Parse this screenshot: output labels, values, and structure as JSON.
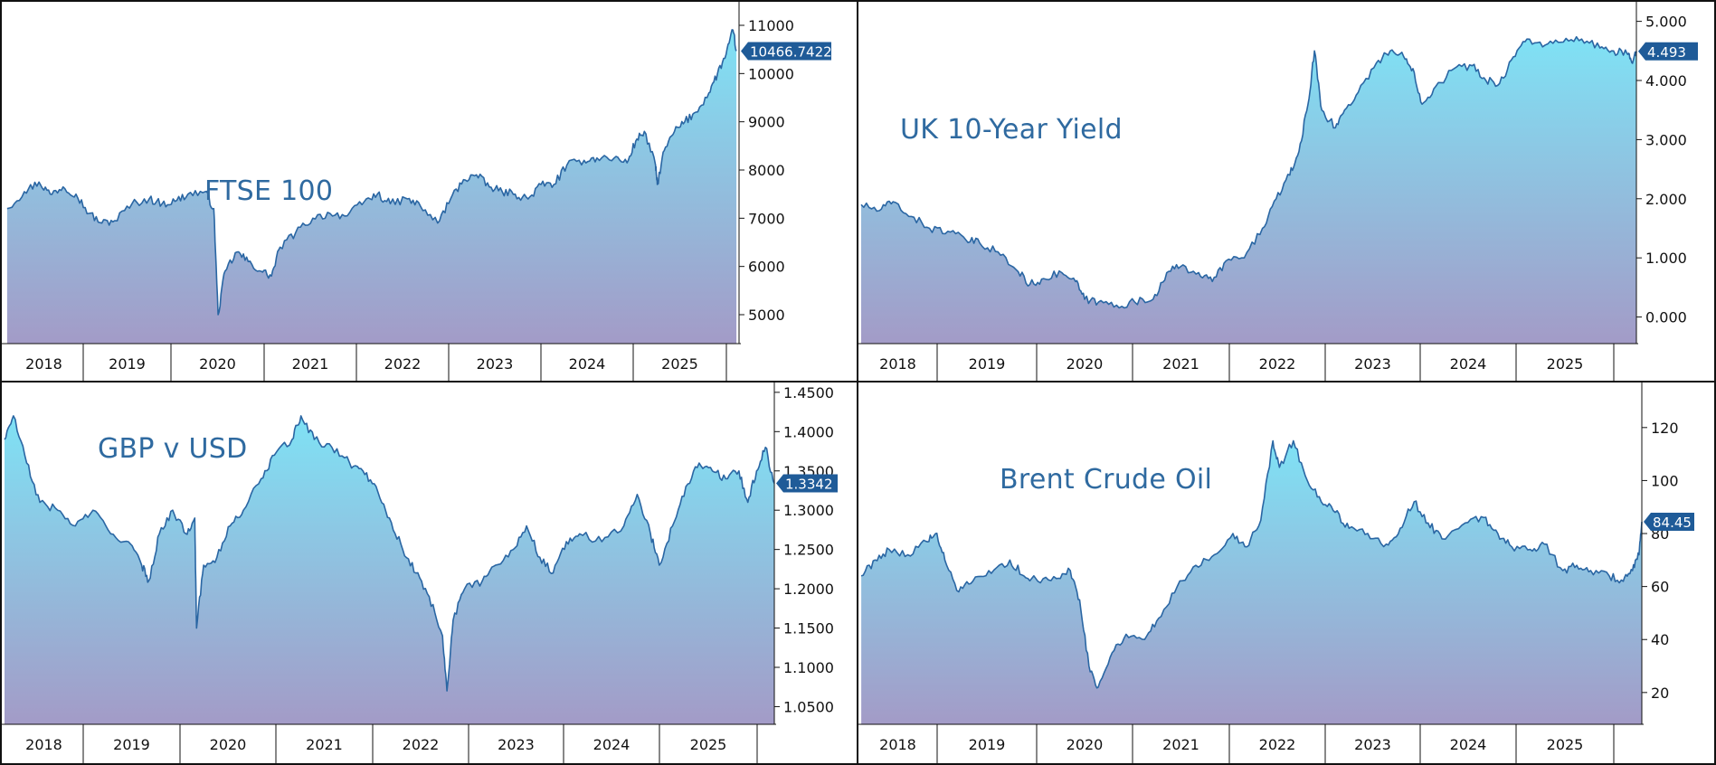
{
  "colors": {
    "line": "#2a66a3",
    "fill_top": "#7fe2f5",
    "fill_bottom": "#a39bc7",
    "badge": "#1f5b98",
    "badge_text": "#ffffff",
    "frame": "#111111"
  },
  "chart_data": [
    {
      "type": "area",
      "title": "FTSE 100",
      "x_labels": [
        "2018",
        "2019",
        "2020",
        "2021",
        "2022",
        "2023",
        "2024",
        "2025"
      ],
      "y_ticks": [
        "11000",
        "10000",
        "9000",
        "8000",
        "7000",
        "6000",
        "5000"
      ],
      "y_tick_values": [
        11000,
        10000,
        9000,
        8000,
        7000,
        6000,
        5000
      ],
      "ylim": [
        4400,
        11450
      ],
      "last_value_label": "10466.7422",
      "last_value": 10466.7422,
      "series_anchors": [
        [
          2017.75,
          7200
        ],
        [
          2017.95,
          7550
        ],
        [
          2018.12,
          7750
        ],
        [
          2018.25,
          7500
        ],
        [
          2018.4,
          7650
        ],
        [
          2018.55,
          7500
        ],
        [
          2018.7,
          7100
        ],
        [
          2018.85,
          6900
        ],
        [
          2019.0,
          6950
        ],
        [
          2019.2,
          7300
        ],
        [
          2019.4,
          7400
        ],
        [
          2019.55,
          7300
        ],
        [
          2019.7,
          7350
        ],
        [
          2019.85,
          7500
        ],
        [
          2020.05,
          7550
        ],
        [
          2020.15,
          7200
        ],
        [
          2020.2,
          5000
        ],
        [
          2020.28,
          5900
        ],
        [
          2020.42,
          6300
        ],
        [
          2020.55,
          6100
        ],
        [
          2020.7,
          5900
        ],
        [
          2020.82,
          5800
        ],
        [
          2020.92,
          6400
        ],
        [
          2021.1,
          6700
        ],
        [
          2021.3,
          7000
        ],
        [
          2021.5,
          7100
        ],
        [
          2021.7,
          7050
        ],
        [
          2021.9,
          7350
        ],
        [
          2022.05,
          7500
        ],
        [
          2022.2,
          7300
        ],
        [
          2022.4,
          7400
        ],
        [
          2022.55,
          7250
        ],
        [
          2022.75,
          6900
        ],
        [
          2022.9,
          7400
        ],
        [
          2023.05,
          7800
        ],
        [
          2023.2,
          7900
        ],
        [
          2023.35,
          7650
        ],
        [
          2023.5,
          7550
        ],
        [
          2023.65,
          7500
        ],
        [
          2023.8,
          7400
        ],
        [
          2023.95,
          7700
        ],
        [
          2024.1,
          7700
        ],
        [
          2024.25,
          8100
        ],
        [
          2024.45,
          8200
        ],
        [
          2024.6,
          8250
        ],
        [
          2024.8,
          8250
        ],
        [
          2024.95,
          8150
        ],
        [
          2025.05,
          8600
        ],
        [
          2025.15,
          8800
        ],
        [
          2025.28,
          8100
        ],
        [
          2025.3,
          7700
        ],
        [
          2025.38,
          8400
        ],
        [
          2025.5,
          8800
        ],
        [
          2025.62,
          9000
        ],
        [
          2025.75,
          9200
        ],
        [
          2025.9,
          9600
        ],
        [
          2026.0,
          10000
        ],
        [
          2026.1,
          10400
        ],
        [
          2026.18,
          10900
        ],
        [
          2026.22,
          10466.74
        ]
      ]
    },
    {
      "type": "area",
      "title": "UK 10-Year Yield",
      "x_labels": [
        "2018",
        "2019",
        "2020",
        "2021",
        "2022",
        "2023",
        "2024",
        "2025"
      ],
      "y_ticks": [
        "5.000",
        "4.000",
        "3.000",
        "2.000",
        "1.000",
        "0.000"
      ],
      "y_tick_values": [
        5,
        4,
        3,
        2,
        1,
        0
      ],
      "ylim": [
        -0.45,
        5.3
      ],
      "last_value_label": "4.493",
      "last_value": 4.493,
      "series_anchors": [
        [
          2017.75,
          1.9
        ],
        [
          2017.95,
          1.8
        ],
        [
          2018.1,
          1.95
        ],
        [
          2018.3,
          1.7
        ],
        [
          2018.5,
          1.5
        ],
        [
          2018.7,
          1.45
        ],
        [
          2018.9,
          1.3
        ],
        [
          2019.05,
          1.25
        ],
        [
          2019.25,
          1.1
        ],
        [
          2019.45,
          0.8
        ],
        [
          2019.6,
          0.55
        ],
        [
          2019.75,
          0.65
        ],
        [
          2019.95,
          0.75
        ],
        [
          2020.1,
          0.6
        ],
        [
          2020.2,
          0.3
        ],
        [
          2020.35,
          0.25
        ],
        [
          2020.55,
          0.2
        ],
        [
          2020.75,
          0.25
        ],
        [
          2020.95,
          0.3
        ],
        [
          2021.1,
          0.75
        ],
        [
          2021.25,
          0.85
        ],
        [
          2021.45,
          0.75
        ],
        [
          2021.6,
          0.6
        ],
        [
          2021.75,
          0.95
        ],
        [
          2021.95,
          1.0
        ],
        [
          2022.15,
          1.5
        ],
        [
          2022.3,
          2.0
        ],
        [
          2022.45,
          2.4
        ],
        [
          2022.55,
          2.8
        ],
        [
          2022.65,
          3.6
        ],
        [
          2022.72,
          4.5
        ],
        [
          2022.8,
          3.5
        ],
        [
          2022.95,
          3.2
        ],
        [
          2023.05,
          3.5
        ],
        [
          2023.2,
          3.8
        ],
        [
          2023.4,
          4.3
        ],
        [
          2023.55,
          4.5
        ],
        [
          2023.7,
          4.4
        ],
        [
          2023.8,
          4.2
        ],
        [
          2023.9,
          3.6
        ],
        [
          2024.05,
          3.9
        ],
        [
          2024.25,
          4.2
        ],
        [
          2024.45,
          4.25
        ],
        [
          2024.6,
          4.0
        ],
        [
          2024.75,
          3.95
        ],
        [
          2024.9,
          4.4
        ],
        [
          2025.05,
          4.7
        ],
        [
          2025.25,
          4.6
        ],
        [
          2025.45,
          4.65
        ],
        [
          2025.65,
          4.7
        ],
        [
          2025.85,
          4.55
        ],
        [
          2026.0,
          4.5
        ],
        [
          2026.15,
          4.45
        ],
        [
          2026.2,
          4.3
        ],
        [
          2026.25,
          4.493
        ]
      ]
    },
    {
      "type": "area",
      "title": "GBP v USD",
      "x_labels": [
        "2018",
        "2019",
        "2020",
        "2021",
        "2022",
        "2023",
        "2024",
        "2025"
      ],
      "y_ticks": [
        "1.4500",
        "1.4000",
        "1.3500",
        "1.3000",
        "1.2500",
        "1.2000",
        "1.1500",
        "1.1000",
        "1.0500"
      ],
      "y_tick_values": [
        1.45,
        1.4,
        1.35,
        1.3,
        1.25,
        1.2,
        1.15,
        1.1,
        1.05
      ],
      "ylim": [
        1.0275,
        1.4625
      ],
      "last_value_label": "1.3342",
      "last_value": 1.3342,
      "series_anchors": [
        [
          2017.55,
          1.39
        ],
        [
          2017.65,
          1.42
        ],
        [
          2017.8,
          1.36
        ],
        [
          2017.95,
          1.31
        ],
        [
          2018.15,
          1.3
        ],
        [
          2018.35,
          1.28
        ],
        [
          2018.55,
          1.3
        ],
        [
          2018.75,
          1.27
        ],
        [
          2018.95,
          1.26
        ],
        [
          2019.1,
          1.23
        ],
        [
          2019.18,
          1.21
        ],
        [
          2019.3,
          1.27
        ],
        [
          2019.45,
          1.3
        ],
        [
          2019.6,
          1.27
        ],
        [
          2019.7,
          1.29
        ],
        [
          2019.72,
          1.15
        ],
        [
          2019.8,
          1.23
        ],
        [
          2019.95,
          1.24
        ],
        [
          2020.1,
          1.28
        ],
        [
          2020.25,
          1.3
        ],
        [
          2020.45,
          1.34
        ],
        [
          2020.6,
          1.37
        ],
        [
          2020.8,
          1.39
        ],
        [
          2020.9,
          1.42
        ],
        [
          2021.05,
          1.39
        ],
        [
          2021.25,
          1.38
        ],
        [
          2021.45,
          1.36
        ],
        [
          2021.6,
          1.35
        ],
        [
          2021.75,
          1.33
        ],
        [
          2021.9,
          1.29
        ],
        [
          2022.05,
          1.25
        ],
        [
          2022.2,
          1.22
        ],
        [
          2022.35,
          1.19
        ],
        [
          2022.5,
          1.14
        ],
        [
          2022.55,
          1.07
        ],
        [
          2022.62,
          1.16
        ],
        [
          2022.75,
          1.2
        ],
        [
          2022.95,
          1.21
        ],
        [
          2023.1,
          1.23
        ],
        [
          2023.3,
          1.25
        ],
        [
          2023.45,
          1.28
        ],
        [
          2023.6,
          1.24
        ],
        [
          2023.75,
          1.22
        ],
        [
          2023.9,
          1.26
        ],
        [
          2024.05,
          1.27
        ],
        [
          2024.3,
          1.26
        ],
        [
          2024.55,
          1.28
        ],
        [
          2024.7,
          1.32
        ],
        [
          2024.85,
          1.27
        ],
        [
          2024.95,
          1.23
        ],
        [
          2025.1,
          1.28
        ],
        [
          2025.25,
          1.33
        ],
        [
          2025.4,
          1.36
        ],
        [
          2025.55,
          1.35
        ],
        [
          2025.7,
          1.34
        ],
        [
          2025.85,
          1.35
        ],
        [
          2025.95,
          1.31
        ],
        [
          2026.05,
          1.35
        ],
        [
          2026.15,
          1.38
        ],
        [
          2026.25,
          1.3342
        ]
      ]
    },
    {
      "type": "area",
      "title": "Brent Crude Oil",
      "x_labels": [
        "2018",
        "2019",
        "2020",
        "2021",
        "2022",
        "2023",
        "2024",
        "2025"
      ],
      "y_ticks": [
        "120",
        "100",
        "80",
        "60",
        "40",
        "20"
      ],
      "y_tick_values": [
        120,
        100,
        80,
        60,
        40,
        20
      ],
      "ylim": [
        8,
        137
      ],
      "last_value_label": "84.45",
      "last_value": 84.45,
      "series_anchors": [
        [
          2017.75,
          64
        ],
        [
          2017.9,
          70
        ],
        [
          2018.05,
          74
        ],
        [
          2018.25,
          72
        ],
        [
          2018.45,
          77
        ],
        [
          2018.55,
          80
        ],
        [
          2018.65,
          70
        ],
        [
          2018.8,
          58
        ],
        [
          2018.95,
          62
        ],
        [
          2019.15,
          65
        ],
        [
          2019.35,
          70
        ],
        [
          2019.5,
          64
        ],
        [
          2019.65,
          62
        ],
        [
          2019.85,
          63
        ],
        [
          2020.0,
          66
        ],
        [
          2020.1,
          55
        ],
        [
          2020.2,
          30
        ],
        [
          2020.3,
          22
        ],
        [
          2020.45,
          35
        ],
        [
          2020.6,
          42
        ],
        [
          2020.8,
          40
        ],
        [
          2020.95,
          48
        ],
        [
          2021.15,
          60
        ],
        [
          2021.35,
          68
        ],
        [
          2021.55,
          72
        ],
        [
          2021.75,
          80
        ],
        [
          2021.9,
          75
        ],
        [
          2022.05,
          85
        ],
        [
          2022.18,
          115
        ],
        [
          2022.25,
          105
        ],
        [
          2022.4,
          115
        ],
        [
          2022.55,
          100
        ],
        [
          2022.7,
          92
        ],
        [
          2022.85,
          88
        ],
        [
          2023.0,
          82
        ],
        [
          2023.2,
          80
        ],
        [
          2023.4,
          76
        ],
        [
          2023.55,
          82
        ],
        [
          2023.7,
          92
        ],
        [
          2023.85,
          84
        ],
        [
          2024.0,
          78
        ],
        [
          2024.25,
          84
        ],
        [
          2024.45,
          86
        ],
        [
          2024.6,
          80
        ],
        [
          2024.75,
          75
        ],
        [
          2024.95,
          74
        ],
        [
          2025.1,
          76
        ],
        [
          2025.3,
          66
        ],
        [
          2025.45,
          68
        ],
        [
          2025.6,
          66
        ],
        [
          2025.8,
          64
        ],
        [
          2025.95,
          62
        ],
        [
          2026.05,
          66
        ],
        [
          2026.12,
          72
        ],
        [
          2026.15,
          84.45
        ]
      ]
    }
  ]
}
